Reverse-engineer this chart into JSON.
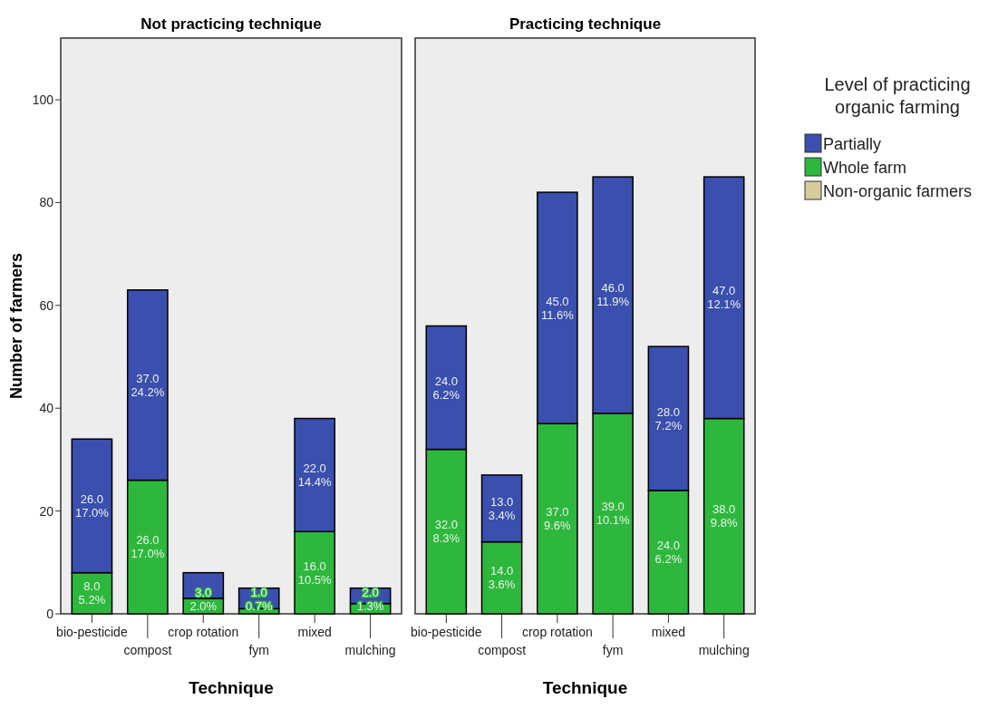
{
  "chart_data": [
    {
      "type": "bar",
      "title": "Not practicing technique",
      "xlabel": "Technique",
      "ylabel": "Number of farmers",
      "stacked": true,
      "grid": false,
      "categories": [
        "bio-pesticide",
        "compost",
        "crop rotation",
        "fym",
        "mixed",
        "mulching"
      ],
      "ylim": [
        0,
        112
      ],
      "yticks": [
        0,
        20,
        40,
        60,
        80,
        100
      ],
      "series": [
        {
          "color": "#2db83d",
          "values": [
            8,
            26,
            3,
            1,
            16,
            2
          ],
          "value_labels": [
            "8.0\n5.2%",
            "26.0\n17.0%",
            "3.0\n2.0%",
            "1.0\n0.7%",
            "16.0\n10.5%",
            "2.0\n1.3%"
          ]
        },
        {
          "color": "#3a4fae",
          "values": [
            26,
            37,
            5,
            4,
            22,
            3
          ],
          "value_labels": [
            "26.0\n17.0%",
            "37.0\n24.2%",
            null,
            null,
            "22.0\n14.4%",
            null
          ]
        }
      ]
    },
    {
      "type": "bar",
      "title": "Practicing technique",
      "xlabel": "Technique",
      "stacked": true,
      "legend": "right",
      "legend_title": "Level of practicing organic farming",
      "grid": false,
      "tick_labels": "x",
      "categories": [
        "bio-pesticide",
        "compost",
        "crop rotation",
        "fym",
        "mixed",
        "mulching"
      ],
      "ylim": [
        0,
        112
      ],
      "series": [
        {
          "name": "Non-organic farmers",
          "color": "#d6cc9c",
          "values": [
            0,
            0,
            0,
            0,
            0,
            0
          ]
        },
        {
          "name": "Whole farm",
          "color": "#2db83d",
          "values": [
            32,
            14,
            37,
            39,
            24,
            38
          ],
          "value_labels": [
            "32.0\n8.3%",
            "14.0\n3.6%",
            "37.0\n9.6%",
            "39.0\n10.1%",
            "24.0\n6.2%",
            "38.0\n9.8%"
          ]
        },
        {
          "name": "Partially",
          "color": "#3a4fae",
          "values": [
            24,
            13,
            45,
            46,
            28,
            47
          ],
          "value_labels": [
            "24.0\n6.2%",
            "13.0\n3.4%",
            "45.0\n11.6%",
            "46.0\n11.9%",
            "28.0\n7.2%",
            "47.0\n12.1%"
          ]
        }
      ]
    }
  ]
}
